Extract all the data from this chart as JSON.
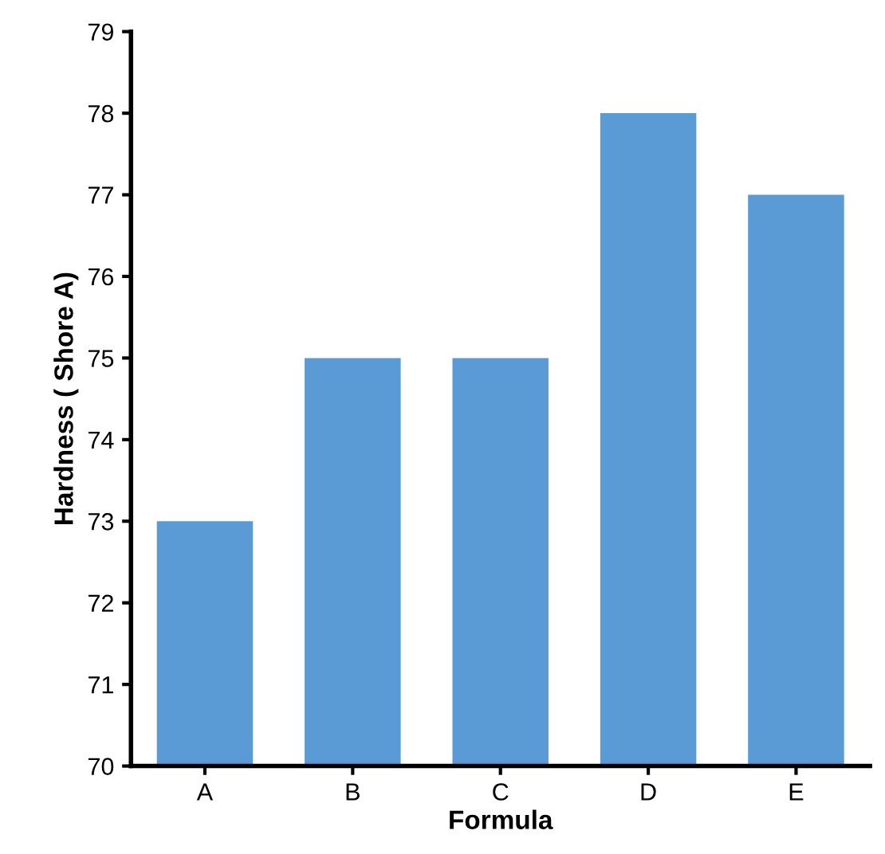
{
  "chart_data": {
    "type": "bar",
    "xlabel": "Formula",
    "ylabel": "Hardness ( Shore A)",
    "categories": [
      "A",
      "B",
      "C",
      "D",
      "E"
    ],
    "values": [
      73,
      75,
      75,
      78,
      77
    ],
    "color": "#5b9bd5",
    "ylim": [
      70,
      79
    ],
    "yticks": [
      70,
      71,
      72,
      73,
      74,
      75,
      76,
      77,
      78,
      79
    ],
    "grid": false,
    "legend": false
  }
}
